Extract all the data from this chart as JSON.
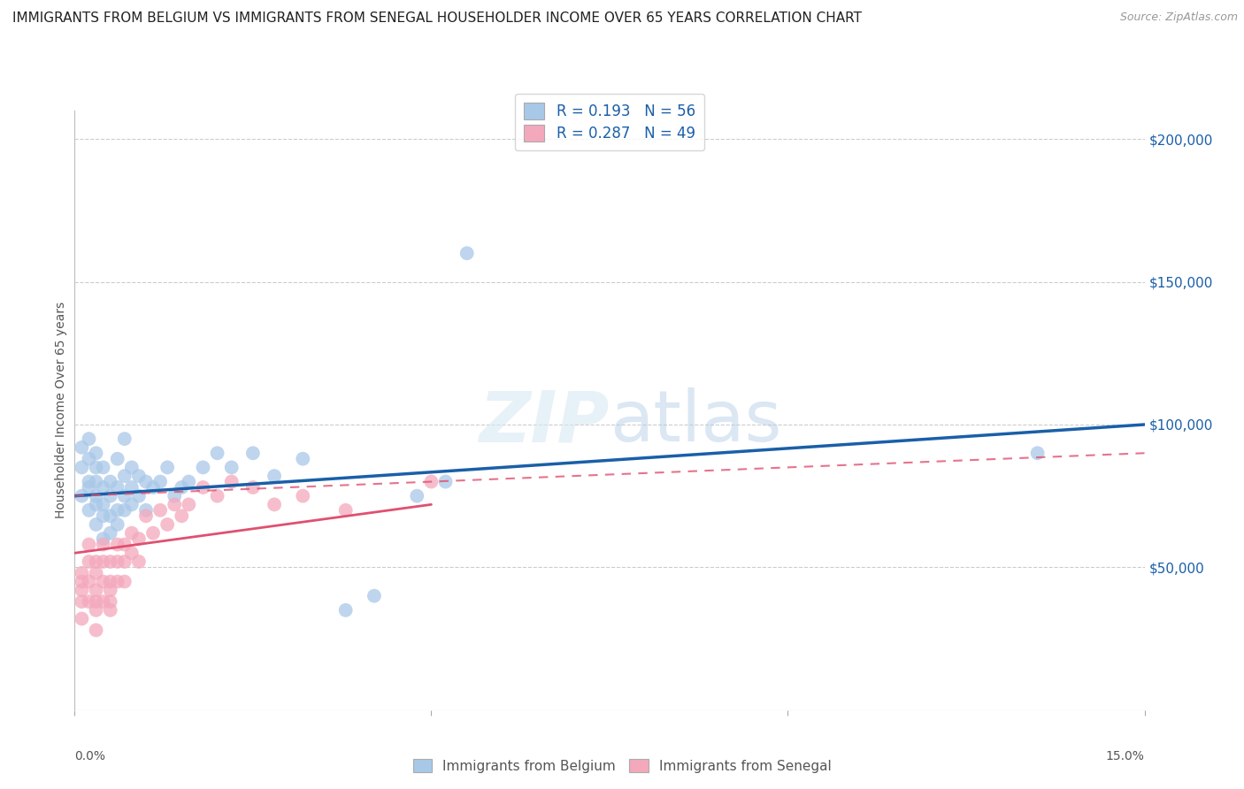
{
  "title": "IMMIGRANTS FROM BELGIUM VS IMMIGRANTS FROM SENEGAL HOUSEHOLDER INCOME OVER 65 YEARS CORRELATION CHART",
  "source": "Source: ZipAtlas.com",
  "ylabel": "Householder Income Over 65 years",
  "xlim": [
    0.0,
    0.15
  ],
  "ylim": [
    0,
    210000
  ],
  "belgium_R": 0.193,
  "belgium_N": 56,
  "senegal_R": 0.287,
  "senegal_N": 49,
  "belgium_color": "#A8C8E8",
  "senegal_color": "#F4A8BC",
  "belgium_line_color": "#1A5FA8",
  "senegal_line_color": "#E05070",
  "background_color": "#ffffff",
  "belgium_x": [
    0.001,
    0.001,
    0.001,
    0.002,
    0.002,
    0.002,
    0.002,
    0.002,
    0.003,
    0.003,
    0.003,
    0.003,
    0.003,
    0.003,
    0.004,
    0.004,
    0.004,
    0.004,
    0.004,
    0.005,
    0.005,
    0.005,
    0.005,
    0.006,
    0.006,
    0.006,
    0.006,
    0.007,
    0.007,
    0.007,
    0.007,
    0.008,
    0.008,
    0.008,
    0.009,
    0.009,
    0.01,
    0.01,
    0.011,
    0.012,
    0.013,
    0.014,
    0.015,
    0.016,
    0.018,
    0.02,
    0.022,
    0.025,
    0.028,
    0.032,
    0.038,
    0.042,
    0.048,
    0.052,
    0.055,
    0.135
  ],
  "belgium_y": [
    75000,
    85000,
    92000,
    70000,
    78000,
    80000,
    88000,
    95000,
    65000,
    72000,
    75000,
    80000,
    85000,
    90000,
    60000,
    68000,
    72000,
    78000,
    85000,
    62000,
    68000,
    75000,
    80000,
    65000,
    70000,
    78000,
    88000,
    70000,
    75000,
    82000,
    95000,
    72000,
    78000,
    85000,
    75000,
    82000,
    70000,
    80000,
    78000,
    80000,
    85000,
    75000,
    78000,
    80000,
    85000,
    90000,
    85000,
    90000,
    82000,
    88000,
    35000,
    40000,
    75000,
    80000,
    160000,
    90000
  ],
  "senegal_x": [
    0.001,
    0.001,
    0.001,
    0.001,
    0.001,
    0.002,
    0.002,
    0.002,
    0.002,
    0.003,
    0.003,
    0.003,
    0.003,
    0.003,
    0.003,
    0.004,
    0.004,
    0.004,
    0.004,
    0.005,
    0.005,
    0.005,
    0.005,
    0.005,
    0.006,
    0.006,
    0.006,
    0.007,
    0.007,
    0.007,
    0.008,
    0.008,
    0.009,
    0.009,
    0.01,
    0.011,
    0.012,
    0.013,
    0.014,
    0.015,
    0.016,
    0.018,
    0.02,
    0.022,
    0.025,
    0.028,
    0.032,
    0.038,
    0.05
  ],
  "senegal_y": [
    42000,
    48000,
    38000,
    32000,
    45000,
    38000,
    45000,
    52000,
    58000,
    35000,
    42000,
    48000,
    52000,
    38000,
    28000,
    38000,
    45000,
    52000,
    58000,
    38000,
    45000,
    52000,
    42000,
    35000,
    45000,
    52000,
    58000,
    52000,
    58000,
    45000,
    55000,
    62000,
    52000,
    60000,
    68000,
    62000,
    70000,
    65000,
    72000,
    68000,
    72000,
    78000,
    75000,
    80000,
    78000,
    72000,
    75000,
    70000,
    80000
  ]
}
